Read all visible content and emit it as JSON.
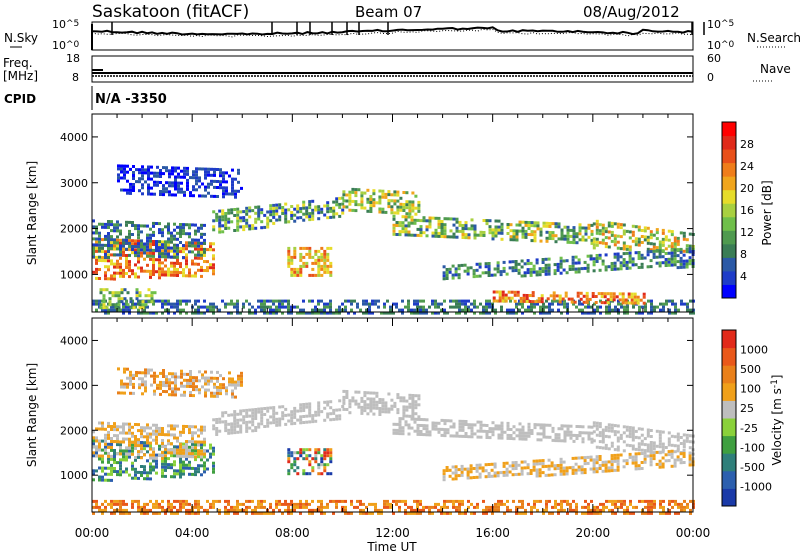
{
  "header": {
    "station": "Saskatoon (fitACF)",
    "beam": "Beam 07",
    "date": "08/Aug/2012"
  },
  "noise_panel": {
    "left_label": "N.Sky",
    "right_label": "N.Search",
    "ticks": [
      {
        "base": "10",
        "exp": "^5"
      },
      {
        "base": "10",
        "exp": "^0"
      }
    ]
  },
  "freq_panel": {
    "left_label_line1": "Freq.",
    "left_label_line2": "[MHz]",
    "right_label": "Nave",
    "left_ticks": [
      "18",
      "8"
    ],
    "right_ticks": [
      "60",
      "0"
    ]
  },
  "cpid": {
    "label": "CPID",
    "value": "N/A -3350"
  },
  "x_axis": {
    "label": "Time UT",
    "ticks": [
      "00:00",
      "04:00",
      "08:00",
      "12:00",
      "16:00",
      "20:00",
      "00:00"
    ]
  },
  "chart_data": [
    {
      "type": "heatmap",
      "variable": "power",
      "ylabel": "Slant Range [km]",
      "ylim": [
        180,
        4500
      ],
      "yticks": [
        "4000",
        "3000",
        "2000",
        "1000"
      ],
      "xlim_hours": [
        0,
        24
      ],
      "colorbar": {
        "label": "Power [dB]",
        "ticks": [
          "28",
          "24",
          "20",
          "16",
          "12",
          "8",
          "4"
        ],
        "colors": [
          "#0000ff",
          "#1e3cc8",
          "#2b59a6",
          "#3a7d55",
          "#4f9a4f",
          "#6fbf4a",
          "#a8d040",
          "#e6dc2a",
          "#f0a51c",
          "#ef7d1a",
          "#e8501a",
          "#e02a1a",
          "#ff0000"
        ]
      }
    },
    {
      "type": "heatmap",
      "variable": "velocity",
      "ylabel": "Slant Range [km]",
      "ylim": [
        180,
        4500
      ],
      "yticks": [
        "4000",
        "3000",
        "2000",
        "1000"
      ],
      "xlim_hours": [
        0,
        24
      ],
      "colorbar": {
        "label": "Velocity [m s",
        "label_sup": "-1",
        "label_end": "]",
        "ticks": [
          "1000",
          "500",
          "100",
          "25",
          "-25",
          "-100",
          "-500",
          "-1000"
        ],
        "colors": [
          "#1a3aa8",
          "#2c5fae",
          "#2f7f7a",
          "#3f9f40",
          "#8ad13a",
          "#bebebe",
          "#f0a01a",
          "#e9801a",
          "#e9581a",
          "#e22a1a"
        ]
      }
    }
  ]
}
